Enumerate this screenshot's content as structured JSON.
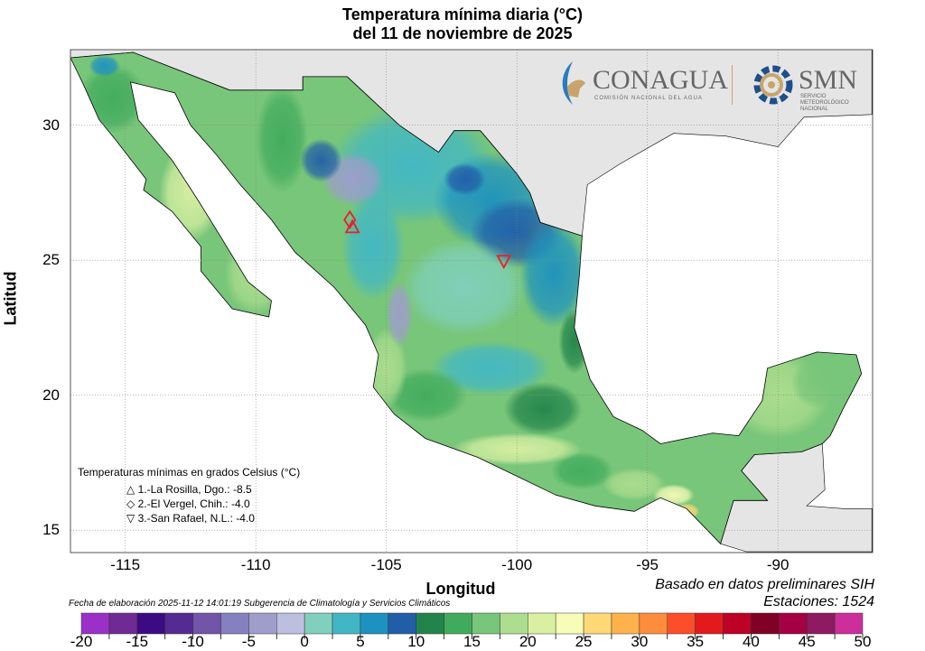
{
  "title": [
    "Temperatura mínima diaria (°C)",
    "del 11 de noviembre de 2025"
  ],
  "axes": {
    "xlabel": "Longitud",
    "ylabel": "Latitud",
    "xticks": [
      "-115",
      "-110",
      "-105",
      "-100",
      "-95",
      "-90"
    ],
    "yticks": [
      "30",
      "25",
      "20",
      "15"
    ]
  },
  "legend": {
    "heading": "Temperaturas mínimas en grados Celsius (°C)",
    "items": [
      {
        "symbol": "△",
        "text": "1.-La Rosilla, Dgo.: -8.5"
      },
      {
        "symbol": "◇",
        "text": "2.-El Vergel, Chih.: -4.0"
      },
      {
        "symbol": "▽",
        "text": "3.-San Rafael, N.L.: -4.0"
      }
    ]
  },
  "footer": {
    "fecha": "Fecha de elaboración 2025-11-12 14:01:19 Subgerencia de Climatología y Servicios Climáticos",
    "basado": "Basado en datos preliminares SIH",
    "estaciones": "Estaciones:  1524"
  },
  "logos": {
    "conagua": "CONAGUA",
    "conagua_sub": "COMISIÓN NACIONAL DEL AGUA",
    "smn": "SMN",
    "smn_sub": "SERVICIO METEOROLÓGICO NACIONAL"
  },
  "colorbar": {
    "labels": [
      "-20",
      "-15",
      "-10",
      "-5",
      "0",
      "5",
      "10",
      "15",
      "20",
      "25",
      "30",
      "35",
      "40",
      "45",
      "50"
    ],
    "colors": [
      "#9b30c8",
      "#702a93",
      "#3c0a82",
      "#552b92",
      "#7254a8",
      "#8580c0",
      "#a09dcb",
      "#bdbfe0",
      "#80d0bd",
      "#41b7c6",
      "#1d91c0",
      "#225ea8",
      "#22844a",
      "#41ab5d",
      "#78c679",
      "#addd8e",
      "#d9f0a3",
      "#f7fcb9",
      "#fed976",
      "#feb24c",
      "#fd8d3c",
      "#fc4e2a",
      "#e31a1c",
      " #bd0026",
      "#800026",
      "#a50043",
      "#8e1a62",
      "#cc2f9a"
    ]
  },
  "colors": {
    "ocean": "#ffffff",
    "other_land": "#e5e5e5",
    "marker": "#e8202a"
  }
}
